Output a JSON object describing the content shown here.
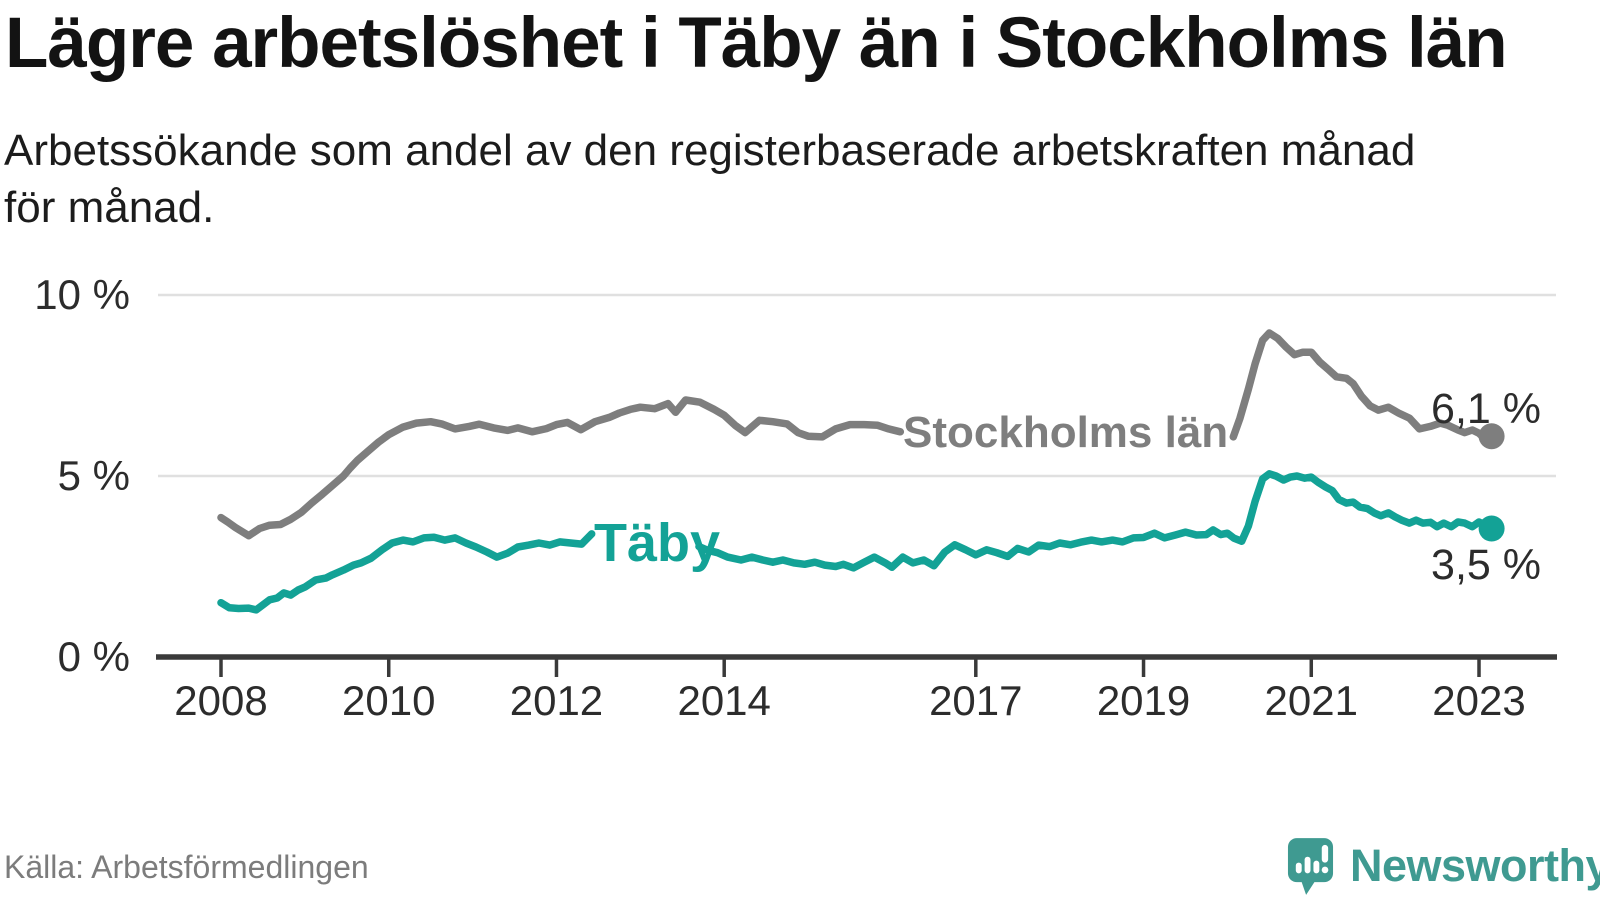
{
  "header": {
    "title": "Lägre arbetslöshet i Täby än i Stockholms län",
    "subtitle_lines": [
      "Arbetssökande som andel av den registerbaserade arbetskraften månad",
      "för månad."
    ]
  },
  "chart_data": {
    "type": "line",
    "title": "Lägre arbetslöshet i Täby än i Stockholms län",
    "ylabel": "",
    "xlabel": "",
    "x_range": [
      2008,
      2023.6
    ],
    "ylim": [
      0,
      10
    ],
    "grid": "horizontal",
    "legend_position": "inline-labels",
    "y_ticks": [
      {
        "value": 10,
        "label": "10 %"
      },
      {
        "value": 5,
        "label": "5 %"
      },
      {
        "value": 0,
        "label": "0 %"
      }
    ],
    "x_ticks": [
      {
        "year": 2008,
        "label": "2008"
      },
      {
        "year": 2010,
        "label": "2010"
      },
      {
        "year": 2012,
        "label": "2012"
      },
      {
        "year": 2014,
        "label": "2014"
      },
      {
        "year": 2017,
        "label": "2017"
      },
      {
        "year": 2019,
        "label": "2019"
      },
      {
        "year": 2021,
        "label": "2021"
      },
      {
        "year": 2023,
        "label": "2023"
      }
    ],
    "series": [
      {
        "name": "Stockholms län",
        "color": "#7e7e7e",
        "end_label": "6,1 %",
        "end_value": 6.1,
        "segments": [
          [
            [
              2008.0,
              3.85
            ],
            [
              2008.08,
              3.73
            ],
            [
              2008.17,
              3.58
            ],
            [
              2008.33,
              3.35
            ],
            [
              2008.46,
              3.55
            ],
            [
              2008.58,
              3.64
            ],
            [
              2008.71,
              3.66
            ],
            [
              2008.83,
              3.8
            ],
            [
              2008.96,
              4.0
            ],
            [
              2009.08,
              4.25
            ],
            [
              2009.21,
              4.5
            ],
            [
              2009.33,
              4.74
            ],
            [
              2009.46,
              5.0
            ],
            [
              2009.54,
              5.22
            ],
            [
              2009.63,
              5.44
            ],
            [
              2009.75,
              5.68
            ],
            [
              2009.88,
              5.94
            ],
            [
              2010.0,
              6.14
            ],
            [
              2010.17,
              6.35
            ],
            [
              2010.33,
              6.46
            ],
            [
              2010.5,
              6.5
            ],
            [
              2010.63,
              6.44
            ],
            [
              2010.79,
              6.3
            ],
            [
              2010.96,
              6.37
            ],
            [
              2011.08,
              6.43
            ],
            [
              2011.25,
              6.33
            ],
            [
              2011.42,
              6.26
            ],
            [
              2011.54,
              6.33
            ],
            [
              2011.71,
              6.22
            ],
            [
              2011.88,
              6.31
            ],
            [
              2012.0,
              6.42
            ],
            [
              2012.13,
              6.48
            ],
            [
              2012.29,
              6.28
            ],
            [
              2012.46,
              6.5
            ],
            [
              2012.63,
              6.62
            ],
            [
              2012.75,
              6.74
            ],
            [
              2012.88,
              6.84
            ],
            [
              2013.0,
              6.9
            ],
            [
              2013.17,
              6.86
            ],
            [
              2013.33,
              7.0
            ],
            [
              2013.42,
              6.76
            ],
            [
              2013.54,
              7.1
            ],
            [
              2013.71,
              7.04
            ],
            [
              2013.88,
              6.84
            ],
            [
              2014.0,
              6.68
            ],
            [
              2014.13,
              6.4
            ],
            [
              2014.25,
              6.2
            ],
            [
              2014.42,
              6.54
            ],
            [
              2014.58,
              6.5
            ],
            [
              2014.75,
              6.44
            ],
            [
              2014.88,
              6.2
            ],
            [
              2015.0,
              6.1
            ],
            [
              2015.17,
              6.08
            ],
            [
              2015.33,
              6.3
            ],
            [
              2015.5,
              6.42
            ],
            [
              2015.67,
              6.42
            ],
            [
              2015.83,
              6.4
            ],
            [
              2015.96,
              6.3
            ],
            [
              2016.1,
              6.22
            ]
          ],
          [
            [
              2020.07,
              6.08
            ],
            [
              2020.15,
              6.6
            ],
            [
              2020.25,
              7.4
            ],
            [
              2020.33,
              8.1
            ],
            [
              2020.42,
              8.75
            ],
            [
              2020.5,
              8.95
            ],
            [
              2020.6,
              8.8
            ],
            [
              2020.7,
              8.56
            ],
            [
              2020.8,
              8.35
            ],
            [
              2020.9,
              8.42
            ],
            [
              2021.0,
              8.42
            ],
            [
              2021.1,
              8.15
            ],
            [
              2021.2,
              7.95
            ],
            [
              2021.3,
              7.74
            ],
            [
              2021.42,
              7.7
            ],
            [
              2021.5,
              7.55
            ],
            [
              2021.6,
              7.2
            ],
            [
              2021.7,
              6.94
            ],
            [
              2021.8,
              6.82
            ],
            [
              2021.92,
              6.9
            ],
            [
              2022.04,
              6.74
            ],
            [
              2022.17,
              6.6
            ],
            [
              2022.29,
              6.3
            ],
            [
              2022.42,
              6.37
            ],
            [
              2022.54,
              6.46
            ],
            [
              2022.63,
              6.4
            ],
            [
              2022.75,
              6.27
            ],
            [
              2022.83,
              6.2
            ],
            [
              2022.92,
              6.27
            ],
            [
              2023.0,
              6.18
            ],
            [
              2023.06,
              6.05
            ],
            [
              2023.15,
              6.1
            ]
          ]
        ]
      },
      {
        "name": "Täby",
        "color": "#13a296",
        "end_label": "3,5 %",
        "end_value": 3.5,
        "segments": [
          [
            [
              2008.0,
              1.5
            ],
            [
              2008.1,
              1.36
            ],
            [
              2008.21,
              1.34
            ],
            [
              2008.33,
              1.35
            ],
            [
              2008.42,
              1.3
            ],
            [
              2008.5,
              1.44
            ],
            [
              2008.58,
              1.58
            ],
            [
              2008.67,
              1.63
            ],
            [
              2008.75,
              1.77
            ],
            [
              2008.83,
              1.71
            ],
            [
              2008.92,
              1.85
            ],
            [
              2009.0,
              1.93
            ],
            [
              2009.13,
              2.13
            ],
            [
              2009.25,
              2.18
            ],
            [
              2009.33,
              2.27
            ],
            [
              2009.46,
              2.4
            ],
            [
              2009.58,
              2.54
            ],
            [
              2009.67,
              2.6
            ],
            [
              2009.79,
              2.73
            ],
            [
              2009.92,
              2.96
            ],
            [
              2010.04,
              3.15
            ],
            [
              2010.17,
              3.23
            ],
            [
              2010.29,
              3.18
            ],
            [
              2010.42,
              3.29
            ],
            [
              2010.54,
              3.31
            ],
            [
              2010.67,
              3.23
            ],
            [
              2010.79,
              3.29
            ],
            [
              2010.92,
              3.15
            ],
            [
              2011.04,
              3.04
            ],
            [
              2011.17,
              2.9
            ],
            [
              2011.29,
              2.76
            ],
            [
              2011.42,
              2.87
            ],
            [
              2011.54,
              3.04
            ],
            [
              2011.67,
              3.09
            ],
            [
              2011.79,
              3.15
            ],
            [
              2011.92,
              3.09
            ],
            [
              2012.04,
              3.18
            ],
            [
              2012.17,
              3.15
            ],
            [
              2012.3,
              3.12
            ],
            [
              2012.42,
              3.4
            ]
          ],
          [
            [
              2013.7,
              3.05
            ],
            [
              2013.8,
              2.95
            ],
            [
              2013.92,
              2.88
            ],
            [
              2014.04,
              2.76
            ],
            [
              2014.2,
              2.68
            ],
            [
              2014.33,
              2.76
            ],
            [
              2014.46,
              2.68
            ],
            [
              2014.58,
              2.62
            ],
            [
              2014.7,
              2.68
            ],
            [
              2014.83,
              2.6
            ],
            [
              2014.96,
              2.56
            ],
            [
              2015.08,
              2.62
            ],
            [
              2015.2,
              2.54
            ],
            [
              2015.33,
              2.5
            ],
            [
              2015.42,
              2.56
            ],
            [
              2015.54,
              2.46
            ],
            [
              2015.67,
              2.62
            ],
            [
              2015.79,
              2.76
            ],
            [
              2015.92,
              2.6
            ],
            [
              2016.0,
              2.48
            ],
            [
              2016.13,
              2.76
            ],
            [
              2016.25,
              2.6
            ],
            [
              2016.38,
              2.68
            ],
            [
              2016.5,
              2.52
            ],
            [
              2016.63,
              2.9
            ],
            [
              2016.75,
              3.1
            ],
            [
              2016.88,
              2.96
            ],
            [
              2017.0,
              2.82
            ],
            [
              2017.13,
              2.96
            ],
            [
              2017.25,
              2.88
            ],
            [
              2017.38,
              2.78
            ],
            [
              2017.5,
              3.0
            ],
            [
              2017.63,
              2.9
            ],
            [
              2017.75,
              3.09
            ],
            [
              2017.88,
              3.05
            ],
            [
              2018.0,
              3.15
            ],
            [
              2018.13,
              3.1
            ],
            [
              2018.25,
              3.17
            ],
            [
              2018.38,
              3.23
            ],
            [
              2018.5,
              3.18
            ],
            [
              2018.63,
              3.23
            ],
            [
              2018.75,
              3.18
            ],
            [
              2018.88,
              3.29
            ],
            [
              2019.0,
              3.3
            ],
            [
              2019.13,
              3.42
            ],
            [
              2019.25,
              3.29
            ],
            [
              2019.38,
              3.37
            ],
            [
              2019.5,
              3.45
            ],
            [
              2019.63,
              3.37
            ],
            [
              2019.75,
              3.38
            ],
            [
              2019.83,
              3.51
            ],
            [
              2019.92,
              3.38
            ],
            [
              2020.0,
              3.42
            ],
            [
              2020.08,
              3.28
            ],
            [
              2020.17,
              3.2
            ],
            [
              2020.25,
              3.62
            ],
            [
              2020.33,
              4.3
            ],
            [
              2020.42,
              4.92
            ],
            [
              2020.5,
              5.06
            ],
            [
              2020.58,
              5.0
            ],
            [
              2020.67,
              4.89
            ],
            [
              2020.75,
              4.97
            ],
            [
              2020.83,
              5.0
            ],
            [
              2020.92,
              4.94
            ],
            [
              2021.0,
              4.97
            ],
            [
              2021.08,
              4.83
            ],
            [
              2021.17,
              4.7
            ],
            [
              2021.25,
              4.6
            ],
            [
              2021.33,
              4.35
            ],
            [
              2021.42,
              4.25
            ],
            [
              2021.5,
              4.28
            ],
            [
              2021.58,
              4.14
            ],
            [
              2021.67,
              4.1
            ],
            [
              2021.75,
              3.98
            ],
            [
              2021.83,
              3.9
            ],
            [
              2021.92,
              3.98
            ],
            [
              2022.0,
              3.87
            ],
            [
              2022.08,
              3.78
            ],
            [
              2022.17,
              3.7
            ],
            [
              2022.25,
              3.78
            ],
            [
              2022.33,
              3.7
            ],
            [
              2022.42,
              3.72
            ],
            [
              2022.5,
              3.6
            ],
            [
              2022.58,
              3.7
            ],
            [
              2022.67,
              3.6
            ],
            [
              2022.75,
              3.73
            ],
            [
              2022.83,
              3.7
            ],
            [
              2022.92,
              3.6
            ],
            [
              2023.0,
              3.73
            ],
            [
              2023.08,
              3.62
            ],
            [
              2023.15,
              3.55
            ]
          ]
        ]
      }
    ]
  },
  "footer": {
    "source": "Källa: Arbetsförmedlingen",
    "brand": "Newsworthy",
    "brand_color": "#3f9a91"
  }
}
